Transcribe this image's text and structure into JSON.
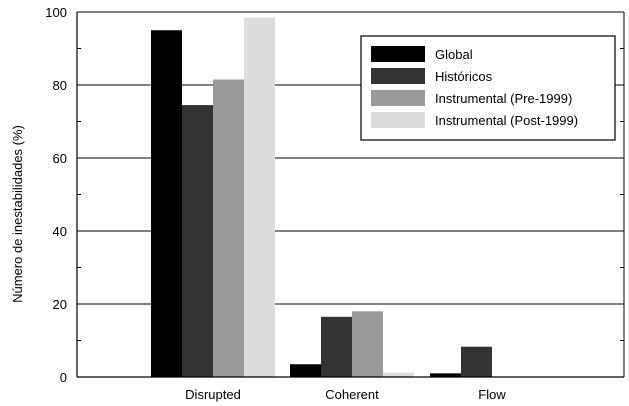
{
  "chart_data": {
    "type": "bar",
    "ylabel": "Número de inestabilidades (%)",
    "xlabel": "",
    "ylim": [
      0,
      100
    ],
    "yticks": [
      0,
      20,
      40,
      60,
      80,
      100
    ],
    "grid": "horizontal",
    "legend_position": "top-right",
    "categories": [
      "Disrupted",
      "Coherent",
      "Flow"
    ],
    "series": [
      {
        "name": "Global",
        "color": "#000000",
        "values": [
          95,
          3.5,
          1
        ]
      },
      {
        "name": "Históricos",
        "color": "#333333",
        "values": [
          74.5,
          16.5,
          8.3
        ]
      },
      {
        "name": "Instrumental (Pre-1999)",
        "color": "#9a9a9a",
        "values": [
          81.5,
          18,
          0
        ]
      },
      {
        "name": "Instrumental (Post-1999)",
        "color": "#dcdcdc",
        "values": [
          98.5,
          1.2,
          0
        ]
      }
    ]
  }
}
